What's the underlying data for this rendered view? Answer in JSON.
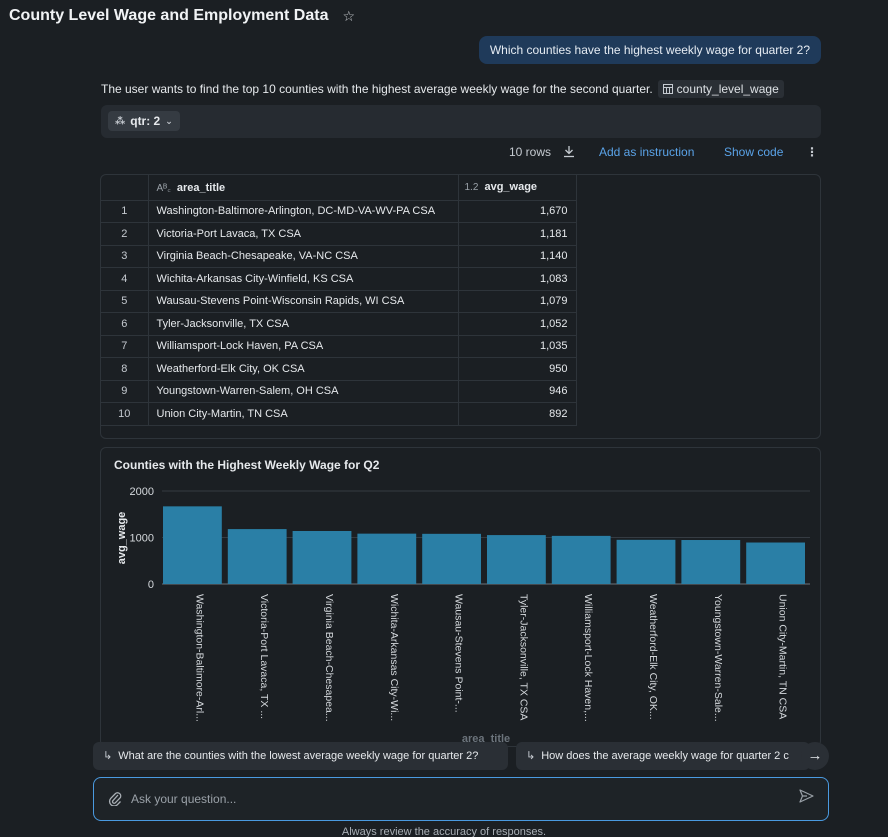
{
  "header": {
    "title": "County Level Wage and Employment Data",
    "star_icon": "star-icon"
  },
  "chat": {
    "user_question": "Which counties have the highest weekly wage for quarter 2?",
    "summary": "The user wants to find the top 10 counties with the highest average weekly wage for the second quarter.",
    "table_chip": "county_level_wage"
  },
  "filter": {
    "label": "qtr: 2"
  },
  "result_actions": {
    "rows": "10 rows",
    "add_instruction": "Add as instruction",
    "show_code": "Show code"
  },
  "table": {
    "columns": [
      {
        "name": "area_title",
        "type_icon": "A͏ᴮ꜀"
      },
      {
        "name": "avg_wage",
        "type_icon": "1.2"
      }
    ],
    "rows": [
      {
        "idx": "1",
        "area_title": "Washington-Baltimore-Arlington, DC-MD-VA-WV-PA CSA",
        "avg_wage": "1,670"
      },
      {
        "idx": "2",
        "area_title": "Victoria-Port Lavaca, TX CSA",
        "avg_wage": "1,181"
      },
      {
        "idx": "3",
        "area_title": "Virginia Beach-Chesapeake, VA-NC CSA",
        "avg_wage": "1,140"
      },
      {
        "idx": "4",
        "area_title": "Wichita-Arkansas City-Winfield, KS CSA",
        "avg_wage": "1,083"
      },
      {
        "idx": "5",
        "area_title": "Wausau-Stevens Point-Wisconsin Rapids, WI CSA",
        "avg_wage": "1,079"
      },
      {
        "idx": "6",
        "area_title": "Tyler-Jacksonville, TX CSA",
        "avg_wage": "1,052"
      },
      {
        "idx": "7",
        "area_title": "Williamsport-Lock Haven, PA CSA",
        "avg_wage": "1,035"
      },
      {
        "idx": "8",
        "area_title": "Weatherford-Elk City, OK CSA",
        "avg_wage": "950"
      },
      {
        "idx": "9",
        "area_title": "Youngstown-Warren-Salem, OH CSA",
        "avg_wage": "946"
      },
      {
        "idx": "10",
        "area_title": "Union City-Martin, TN CSA",
        "avg_wage": "892"
      }
    ]
  },
  "chart_data": {
    "type": "bar",
    "title": "Counties with the Highest Weekly Wage for Q2",
    "xlabel": "area_title",
    "ylabel": "avg_wage",
    "ylim": [
      0,
      2000
    ],
    "yticks": [
      "0",
      "1000",
      "2000"
    ],
    "categories": [
      "Washington-Baltimore-Arl...",
      "Victoria-Port Lavaca, TX ...",
      "Virginia Beach-Chesapea...",
      "Wichita-Arkansas City-Wi...",
      "Wausau-Stevens Point-...",
      "Tyler-Jacksonville, TX CSA",
      "Williamsport-Lock Haven,...",
      "Weatherford-Elk City, OK...",
      "Youngstown-Warren-Sale...",
      "Union City-Martin, TN CSA"
    ],
    "values": [
      1670,
      1181,
      1140,
      1083,
      1079,
      1052,
      1035,
      950,
      946,
      892
    ],
    "bar_color": "#2a7fa6",
    "grid": true
  },
  "suggestions": [
    "What are the counties with the lowest average weekly wage for quarter 2?",
    "How does the average weekly wage for quarter 2 c"
  ],
  "input": {
    "placeholder": "Ask your question..."
  },
  "footer": "Always review the accuracy of responses."
}
